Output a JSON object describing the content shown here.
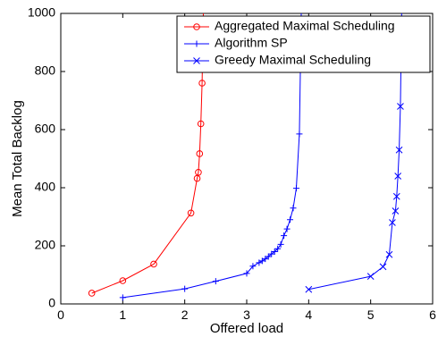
{
  "chart_data": {
    "type": "line",
    "title": "",
    "xlabel": "Offered load",
    "ylabel": "Mean Total Backlog",
    "xlim": [
      0,
      6
    ],
    "ylim": [
      0,
      1000
    ],
    "xticks": [
      0,
      1,
      2,
      3,
      4,
      5,
      6
    ],
    "yticks": [
      0,
      200,
      400,
      600,
      800,
      1000
    ],
    "grid": false,
    "legend_position": "top-right",
    "series": [
      {
        "name": "Aggregated Maximal Scheduling",
        "color": "#ff0000",
        "marker": "circle",
        "x": [
          0.5,
          1.0,
          1.5,
          2.1,
          2.2,
          2.22,
          2.24,
          2.26,
          2.28,
          2.3
        ],
        "y": [
          37,
          80,
          137,
          313,
          432,
          453,
          517,
          620,
          760,
          1000
        ],
        "marked": [
          true,
          true,
          true,
          true,
          true,
          true,
          true,
          true,
          true,
          false
        ]
      },
      {
        "name": "Algorithm SP",
        "color": "#0000ff",
        "marker": "plus",
        "x": [
          1.0,
          2.0,
          2.5,
          3.0,
          3.1,
          3.2,
          3.25,
          3.3,
          3.35,
          3.4,
          3.45,
          3.5,
          3.55,
          3.6,
          3.65,
          3.7,
          3.75,
          3.8,
          3.85,
          3.88
        ],
        "y": [
          22,
          52,
          78,
          105,
          130,
          142,
          148,
          155,
          163,
          172,
          180,
          190,
          205,
          235,
          258,
          290,
          330,
          398,
          585,
          1000
        ],
        "marked": [
          true,
          true,
          true,
          true,
          true,
          true,
          true,
          true,
          true,
          true,
          true,
          true,
          true,
          true,
          true,
          true,
          true,
          true,
          true,
          false
        ]
      },
      {
        "name": "Greedy Maximal Scheduling",
        "color": "#0000ff",
        "marker": "x",
        "x": [
          4.0,
          5.0,
          5.2,
          5.3,
          5.35,
          5.4,
          5.42,
          5.44,
          5.46,
          5.48,
          5.5
        ],
        "y": [
          50,
          95,
          128,
          170,
          280,
          320,
          370,
          440,
          530,
          680,
          1000
        ],
        "marked": [
          true,
          true,
          true,
          true,
          true,
          true,
          true,
          true,
          true,
          true,
          false
        ]
      }
    ]
  }
}
